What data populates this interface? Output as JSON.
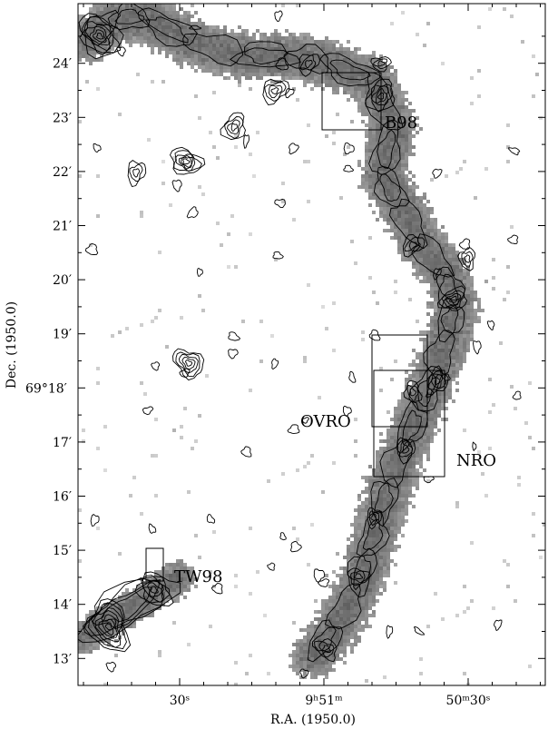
{
  "figure": {
    "y_axis_label": "Dec. (1950.0)",
    "x_axis_label": "R.A. (1950.0)",
    "y_ticks": [
      {
        "text": "24′",
        "dec_arcmin": 24
      },
      {
        "text": "23′",
        "dec_arcmin": 23
      },
      {
        "text": "22′",
        "dec_arcmin": 22
      },
      {
        "text": "21′",
        "dec_arcmin": 21
      },
      {
        "text": "20′",
        "dec_arcmin": 20
      },
      {
        "text": "19′",
        "dec_arcmin": 19
      },
      {
        "text": "69°18′",
        "dec_arcmin": 18
      },
      {
        "text": "17′",
        "dec_arcmin": 17
      },
      {
        "text": "16′",
        "dec_arcmin": 16
      },
      {
        "text": "15′",
        "dec_arcmin": 15
      },
      {
        "text": "14′",
        "dec_arcmin": 14
      },
      {
        "text": "13′",
        "dec_arcmin": 13
      }
    ],
    "x_ticks": [
      {
        "text": "30ˢ",
        "ra_offset_s": -30
      },
      {
        "text": "9ʰ51ᵐ",
        "ra_offset_s": 0
      },
      {
        "text": "50ᵐ30ˢ",
        "ra_offset_s": 30
      }
    ],
    "regions": [
      {
        "label": "B98",
        "name": "box-b98"
      },
      {
        "label": "OVRO",
        "name": "box-ovro"
      },
      {
        "label": "NRO",
        "name": "box-nro"
      },
      {
        "label": "TW98",
        "name": "box-tw98"
      }
    ],
    "colors": {
      "frame": "#000000",
      "contour": "#000000",
      "emission": "#8a8a8a"
    }
  }
}
